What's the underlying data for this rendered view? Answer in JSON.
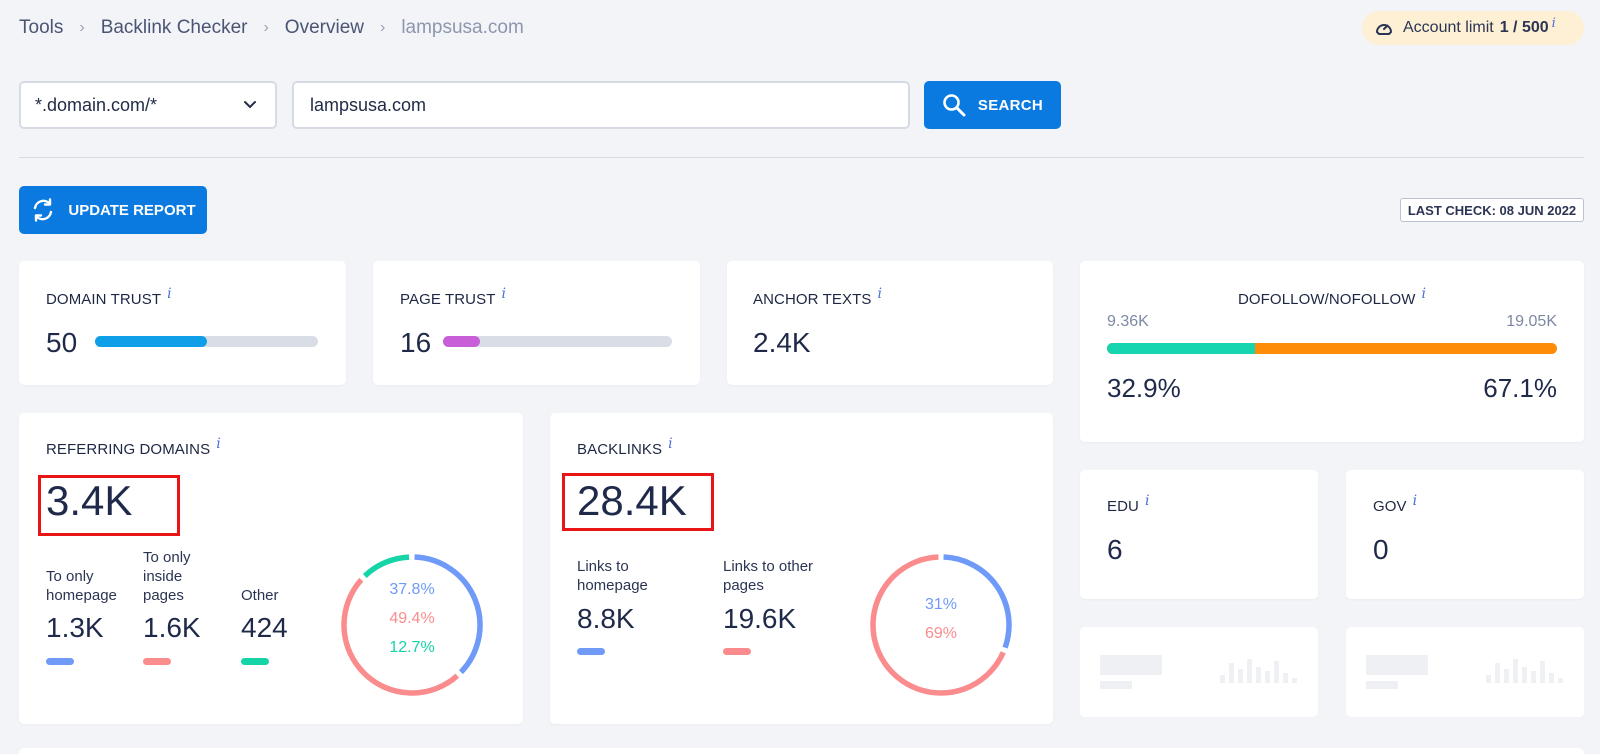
{
  "breadcrumb": [
    "Tools",
    "Backlink Checker",
    "Overview",
    "lampsusa.com"
  ],
  "account": {
    "label": "Account limit",
    "value": "1 / 500",
    "info": "i"
  },
  "search": {
    "scope": "*.domain.com/*",
    "query": "lampsusa.com",
    "button": "SEARCH"
  },
  "update_button": "UPDATE REPORT",
  "last_check": "LAST CHECK: 08 JUN 2022",
  "info_glyph": "i",
  "domain_trust": {
    "title": "DOMAIN TRUST",
    "value": "50",
    "fill": 0.5,
    "color": "#0f9fe8"
  },
  "page_trust": {
    "title": "PAGE TRUST",
    "value": "16",
    "fill": 0.16,
    "color": "#c95fd8"
  },
  "anchor_texts": {
    "title": "ANCHOR TEXTS",
    "value": "2.4K"
  },
  "dofollow": {
    "title": "DOFOLLOW/NOFOLLOW",
    "left_count": "9.36K",
    "right_count": "19.05K",
    "left_pct": "32.9%",
    "right_pct": "67.1%",
    "fill": 0.329,
    "left_color": "#15d4b0",
    "right_color": "#ff8c08"
  },
  "referring_domains": {
    "title": "REFERRING DOMAINS",
    "value": "3.4K",
    "items": [
      {
        "label": "To only homepage",
        "value": "1.3K",
        "color": "#6f9af8"
      },
      {
        "label": "To only inside pages",
        "value": "1.6K",
        "color": "#fa8c8e"
      },
      {
        "label": "Other",
        "value": "424",
        "color": "#15d4a8"
      }
    ],
    "donut": [
      {
        "pct": "37.8%",
        "fraction": 0.378,
        "color": "#6f9af8"
      },
      {
        "pct": "49.4%",
        "fraction": 0.494,
        "color": "#fa8c8e"
      },
      {
        "pct": "12.7%",
        "fraction": 0.127,
        "color": "#15d4a8"
      }
    ]
  },
  "backlinks": {
    "title": "BACKLINKS",
    "value": "28.4K",
    "items": [
      {
        "label": "Links to homepage",
        "value": "8.8K",
        "color": "#6f9af8"
      },
      {
        "label": "Links to other pages",
        "value": "19.6K",
        "color": "#fa8c8e"
      }
    ],
    "donut": [
      {
        "pct": "31%",
        "fraction": 0.31,
        "color": "#6f9af8"
      },
      {
        "pct": "69%",
        "fraction": 0.69,
        "color": "#fa8c8e"
      }
    ]
  },
  "edu": {
    "title": "EDU",
    "value": "6"
  },
  "gov": {
    "title": "GOV",
    "value": "0"
  }
}
